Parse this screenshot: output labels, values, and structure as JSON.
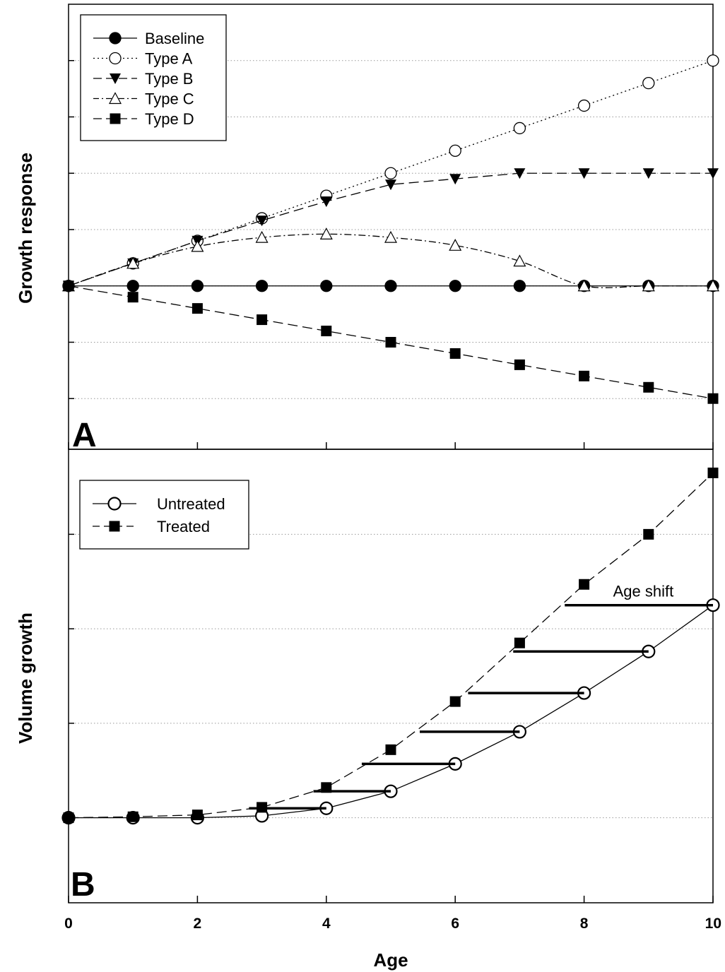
{
  "chart_data": [
    {
      "panel_label": "A",
      "type": "line",
      "ylabel": "Growth response",
      "xlabel": "Age",
      "xlim": [
        0,
        10
      ],
      "ylim": [
        -1.45,
        2.5
      ],
      "grid": "horizontal dotted",
      "legend_position": "top-left",
      "series": [
        {
          "name": "Baseline",
          "marker": "filled-circle",
          "line": "solid",
          "x": [
            0,
            1,
            2,
            3,
            4,
            5,
            6,
            7,
            8,
            9,
            10
          ],
          "y": [
            0,
            0,
            0,
            0,
            0,
            0,
            0,
            0,
            0,
            0,
            0
          ]
        },
        {
          "name": "Type A",
          "marker": "open-circle",
          "line": "dotted",
          "x": [
            0,
            1,
            2,
            3,
            4,
            5,
            6,
            7,
            8,
            9,
            10
          ],
          "y": [
            0,
            0.2,
            0.4,
            0.6,
            0.8,
            1.0,
            1.2,
            1.4,
            1.6,
            1.8,
            2.0
          ]
        },
        {
          "name": "Type B",
          "marker": "filled-triangle-down",
          "line": "long-dash",
          "x": [
            0,
            1,
            2,
            3,
            4,
            5,
            6,
            7,
            8,
            9,
            10
          ],
          "y": [
            0,
            0.2,
            0.4,
            0.58,
            0.75,
            0.9,
            0.95,
            1.0,
            1.0,
            1.0,
            1.0
          ]
        },
        {
          "name": "Type C",
          "marker": "open-triangle-up",
          "line": "dash-dot",
          "x": [
            0,
            1,
            2,
            3,
            4,
            5,
            6,
            7,
            8,
            9,
            10
          ],
          "y": [
            0,
            0.2,
            0.35,
            0.43,
            0.46,
            0.43,
            0.36,
            0.22,
            0,
            0,
            0
          ]
        },
        {
          "name": "Type D",
          "marker": "filled-square",
          "line": "long-dash",
          "x": [
            0,
            1,
            2,
            3,
            4,
            5,
            6,
            7,
            8,
            9,
            10
          ],
          "y": [
            0,
            -0.1,
            -0.2,
            -0.3,
            -0.4,
            -0.5,
            -0.6,
            -0.7,
            -0.8,
            -0.9,
            -1.0
          ]
        }
      ]
    },
    {
      "panel_label": "B",
      "type": "line",
      "ylabel": "Volume growth",
      "xlabel": "Age",
      "xlim": [
        0,
        10
      ],
      "xticks": [
        0,
        2,
        4,
        6,
        8,
        10
      ],
      "ylim": [
        -0.9,
        3.9
      ],
      "grid": "horizontal dotted",
      "legend_position": "top-left",
      "series": [
        {
          "name": "Untreated",
          "marker": "open-circle",
          "line": "solid",
          "x": [
            0,
            1,
            2,
            3,
            4,
            5,
            6,
            7,
            8,
            9,
            10
          ],
          "y": [
            0,
            0,
            0,
            0.02,
            0.1,
            0.28,
            0.57,
            0.91,
            1.32,
            1.76,
            2.25
          ]
        },
        {
          "name": "Treated",
          "marker": "filled-square",
          "line": "long-dash",
          "x": [
            0,
            1,
            2,
            3,
            4,
            5,
            6,
            7,
            8,
            9,
            10
          ],
          "y": [
            0,
            0.01,
            0.03,
            0.11,
            0.32,
            0.72,
            1.23,
            1.85,
            2.47,
            3.0,
            3.65
          ]
        }
      ],
      "annotation": "Age shift",
      "age_shift_segments": [
        {
          "x_from": 2.8,
          "x_to": 4.0,
          "y": 0.1
        },
        {
          "x_from": 3.8,
          "x_to": 5.0,
          "y": 0.28
        },
        {
          "x_from": 4.55,
          "x_to": 6.0,
          "y": 0.57
        },
        {
          "x_from": 5.45,
          "x_to": 7.0,
          "y": 0.91
        },
        {
          "x_from": 6.2,
          "x_to": 8.0,
          "y": 1.32
        },
        {
          "x_from": 6.9,
          "x_to": 9.0,
          "y": 1.76
        },
        {
          "x_from": 7.7,
          "x_to": 10.0,
          "y": 2.25
        }
      ]
    }
  ]
}
